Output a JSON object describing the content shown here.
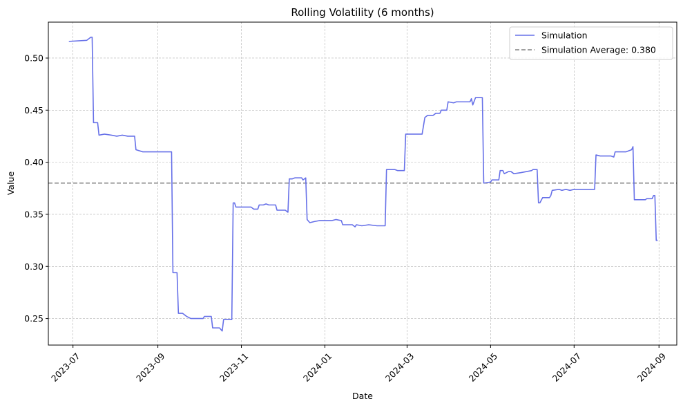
{
  "chart_data": {
    "type": "line",
    "title": "Rolling Volatility (6 months)",
    "xlabel": "Date",
    "ylabel": "Value",
    "x_axis": "date",
    "xlim": [
      "2023-06-13",
      "2024-09-14"
    ],
    "ylim": [
      0.2245,
      0.5345
    ],
    "x_ticks": [
      "2023-07",
      "2023-09",
      "2023-11",
      "2024-01",
      "2024-03",
      "2024-05",
      "2024-07",
      "2024-09"
    ],
    "x_tick_dates": [
      "2023-07-01",
      "2023-09-01",
      "2023-11-01",
      "2024-01-01",
      "2024-03-01",
      "2024-05-01",
      "2024-07-01",
      "2024-09-01"
    ],
    "y_ticks": [
      0.25,
      0.3,
      0.35,
      0.4,
      0.45,
      0.5
    ],
    "y_tick_labels": [
      "0.25",
      "0.30",
      "0.35",
      "0.40",
      "0.45",
      "0.50"
    ],
    "grid": true,
    "legend_position": "top-right",
    "series": [
      {
        "name": "Simulation",
        "color": "#6670e8",
        "points": [
          [
            "2023-06-28",
            0.516
          ],
          [
            "2023-07-11",
            0.517
          ],
          [
            "2023-07-14",
            0.52
          ],
          [
            "2023-07-15",
            0.52
          ],
          [
            "2023-07-16",
            0.438
          ],
          [
            "2023-07-19",
            0.438
          ],
          [
            "2023-07-20",
            0.426
          ],
          [
            "2023-07-24",
            0.427
          ],
          [
            "2023-07-29",
            0.426
          ],
          [
            "2023-08-02",
            0.425
          ],
          [
            "2023-08-06",
            0.426
          ],
          [
            "2023-08-10",
            0.425
          ],
          [
            "2023-08-15",
            0.425
          ],
          [
            "2023-08-16",
            0.412
          ],
          [
            "2023-08-21",
            0.41
          ],
          [
            "2023-08-26",
            0.41
          ],
          [
            "2023-08-31",
            0.41
          ],
          [
            "2023-09-11",
            0.41
          ],
          [
            "2023-09-12",
            0.294
          ],
          [
            "2023-09-15",
            0.294
          ],
          [
            "2023-09-16",
            0.255
          ],
          [
            "2023-09-19",
            0.255
          ],
          [
            "2023-09-22",
            0.252
          ],
          [
            "2023-09-25",
            0.25
          ],
          [
            "2023-10-01",
            0.25
          ],
          [
            "2023-10-04",
            0.25
          ],
          [
            "2023-10-05",
            0.252
          ],
          [
            "2023-10-10",
            0.252
          ],
          [
            "2023-10-11",
            0.241
          ],
          [
            "2023-10-16",
            0.241
          ],
          [
            "2023-10-18",
            0.238
          ],
          [
            "2023-10-19",
            0.249
          ],
          [
            "2023-10-25",
            0.249
          ],
          [
            "2023-10-26",
            0.361
          ],
          [
            "2023-10-27",
            0.361
          ],
          [
            "2023-10-28",
            0.357
          ],
          [
            "2023-11-08",
            0.357
          ],
          [
            "2023-11-10",
            0.355
          ],
          [
            "2023-11-13",
            0.355
          ],
          [
            "2023-11-14",
            0.359
          ],
          [
            "2023-11-17",
            0.359
          ],
          [
            "2023-11-19",
            0.36
          ],
          [
            "2023-11-21",
            0.359
          ],
          [
            "2023-11-26",
            0.359
          ],
          [
            "2023-11-27",
            0.354
          ],
          [
            "2023-12-03",
            0.354
          ],
          [
            "2023-12-05",
            0.352
          ],
          [
            "2023-12-06",
            0.384
          ],
          [
            "2023-12-08",
            0.384
          ],
          [
            "2023-12-10",
            0.385
          ],
          [
            "2023-12-15",
            0.385
          ],
          [
            "2023-12-16",
            0.383
          ],
          [
            "2023-12-18",
            0.385
          ],
          [
            "2023-12-19",
            0.345
          ],
          [
            "2023-12-21",
            0.342
          ],
          [
            "2023-12-24",
            0.343
          ],
          [
            "2023-12-28",
            0.344
          ],
          [
            "2024-01-06",
            0.344
          ],
          [
            "2024-01-09",
            0.345
          ],
          [
            "2024-01-13",
            0.344
          ],
          [
            "2024-01-14",
            0.34
          ],
          [
            "2024-01-21",
            0.34
          ],
          [
            "2024-01-23",
            0.338
          ],
          [
            "2024-01-24",
            0.34
          ],
          [
            "2024-01-28",
            0.339
          ],
          [
            "2024-02-02",
            0.34
          ],
          [
            "2024-02-08",
            0.339
          ],
          [
            "2024-02-14",
            0.339
          ],
          [
            "2024-02-15",
            0.393
          ],
          [
            "2024-02-21",
            0.393
          ],
          [
            "2024-02-23",
            0.392
          ],
          [
            "2024-02-28",
            0.392
          ],
          [
            "2024-02-29",
            0.427
          ],
          [
            "2024-03-12",
            0.427
          ],
          [
            "2024-03-14",
            0.443
          ],
          [
            "2024-03-16",
            0.445
          ],
          [
            "2024-03-20",
            0.445
          ],
          [
            "2024-03-22",
            0.447
          ],
          [
            "2024-03-25",
            0.447
          ],
          [
            "2024-03-26",
            0.45
          ],
          [
            "2024-03-30",
            0.45
          ],
          [
            "2024-03-31",
            0.458
          ],
          [
            "2024-04-04",
            0.457
          ],
          [
            "2024-04-06",
            0.458
          ],
          [
            "2024-04-13",
            0.458
          ],
          [
            "2024-04-16",
            0.458
          ],
          [
            "2024-04-17",
            0.461
          ],
          [
            "2024-04-18",
            0.455
          ],
          [
            "2024-04-20",
            0.462
          ],
          [
            "2024-04-25",
            0.462
          ],
          [
            "2024-04-26",
            0.38
          ],
          [
            "2024-05-01",
            0.381
          ],
          [
            "2024-05-02",
            0.383
          ],
          [
            "2024-05-07",
            0.383
          ],
          [
            "2024-05-08",
            0.392
          ],
          [
            "2024-05-10",
            0.392
          ],
          [
            "2024-05-11",
            0.389
          ],
          [
            "2024-05-14",
            0.391
          ],
          [
            "2024-05-16",
            0.391
          ],
          [
            "2024-05-18",
            0.389
          ],
          [
            "2024-05-23",
            0.39
          ],
          [
            "2024-05-27",
            0.391
          ],
          [
            "2024-05-31",
            0.392
          ],
          [
            "2024-06-01",
            0.393
          ],
          [
            "2024-06-04",
            0.393
          ],
          [
            "2024-06-05",
            0.361
          ],
          [
            "2024-06-06",
            0.361
          ],
          [
            "2024-06-08",
            0.366
          ],
          [
            "2024-06-13",
            0.366
          ],
          [
            "2024-06-14",
            0.368
          ],
          [
            "2024-06-15",
            0.373
          ],
          [
            "2024-06-20",
            0.374
          ],
          [
            "2024-06-22",
            0.373
          ],
          [
            "2024-06-25",
            0.374
          ],
          [
            "2024-06-28",
            0.373
          ],
          [
            "2024-07-01",
            0.374
          ],
          [
            "2024-07-08",
            0.374
          ],
          [
            "2024-07-14",
            0.374
          ],
          [
            "2024-07-16",
            0.374
          ],
          [
            "2024-07-17",
            0.407
          ],
          [
            "2024-07-20",
            0.406
          ],
          [
            "2024-07-28",
            0.406
          ],
          [
            "2024-07-30",
            0.405
          ],
          [
            "2024-07-31",
            0.41
          ],
          [
            "2024-08-08",
            0.41
          ],
          [
            "2024-08-12",
            0.412
          ],
          [
            "2024-08-13",
            0.415
          ],
          [
            "2024-08-14",
            0.364
          ],
          [
            "2024-08-20",
            0.364
          ],
          [
            "2024-08-22",
            0.364
          ],
          [
            "2024-08-23",
            0.365
          ],
          [
            "2024-08-27",
            0.365
          ],
          [
            "2024-08-28",
            0.368
          ],
          [
            "2024-08-29",
            0.368
          ],
          [
            "2024-08-30",
            0.325
          ],
          [
            "2024-08-31",
            0.325
          ]
        ]
      }
    ],
    "reference_lines": [
      {
        "label": "Simulation Average: 0.380",
        "y": 0.38,
        "color": "#808080",
        "style": "dashed"
      }
    ]
  }
}
